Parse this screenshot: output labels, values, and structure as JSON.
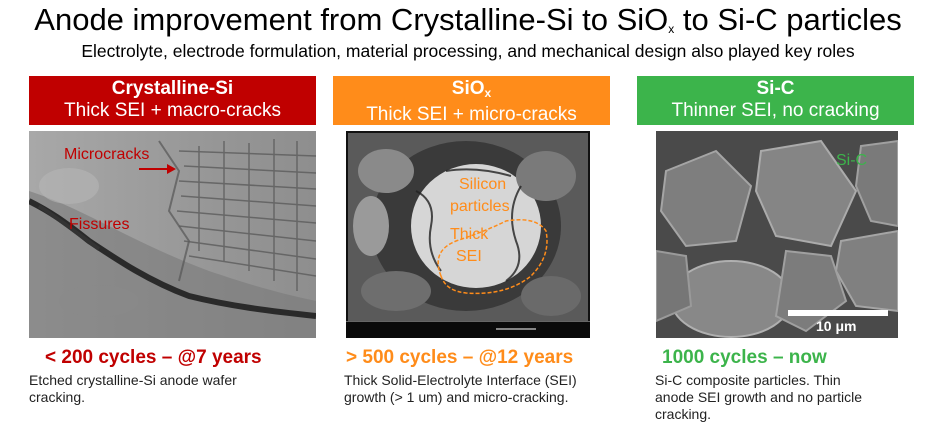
{
  "title": {
    "main": "Anode improvement from Crystalline-Si to SiO",
    "sub_x": "x",
    "tail": " to Si-C particles"
  },
  "subtitle": "Electrolyte, electrode formulation, material processing, and mechanical design also played key roles",
  "colors": {
    "red": "#c00000",
    "orange": "#ff8c1a",
    "green": "#3cb44b"
  },
  "panels": [
    {
      "header_main": "Crystalline-Si",
      "header_sub": "Thick SEI + macro-cracks",
      "image_labels": [
        "Microcracks",
        "Fissures"
      ],
      "cycles": "< 200 cycles – @7 years",
      "description": "Etched crystalline-Si anode wafer cracking."
    },
    {
      "header_main": "SiO",
      "header_main_sub": "x",
      "header_sub": "Thick SEI + micro-cracks",
      "image_labels": [
        "Silicon",
        "particles",
        "Thick",
        "SEI"
      ],
      "cycles": "> 500 cycles – @12 years",
      "description": "Thick Solid-Electrolyte Interface (SEI) growth (> 1 um) and micro-cracking."
    },
    {
      "header_main": "Si-C",
      "header_sub": "Thinner SEI, no cracking",
      "image_labels": [
        "Si-C"
      ],
      "scale_bar": "10 μm",
      "cycles": "1000 cycles – now",
      "description": "Si-C composite particles. Thin anode SEI growth and no particle cracking."
    }
  ]
}
